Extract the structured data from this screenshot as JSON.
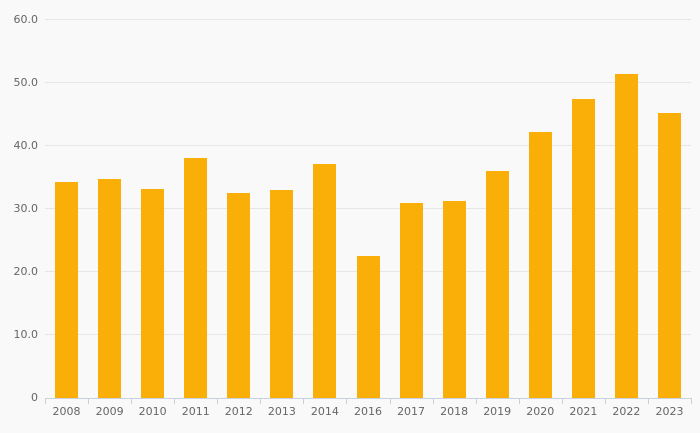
{
  "chart_data": {
    "type": "bar",
    "title": "",
    "xlabel": "",
    "ylabel": "",
    "categories": [
      "2008",
      "2009",
      "2010",
      "2011",
      "2012",
      "2013",
      "2014",
      "2016",
      "2017",
      "2018",
      "2019",
      "2020",
      "2021",
      "2022",
      "2023"
    ],
    "values": [
      34.3,
      34.8,
      33.2,
      38.1,
      32.6,
      33.0,
      37.1,
      22.5,
      31.0,
      31.3,
      36.1,
      42.3,
      47.5,
      51.5,
      45.3
    ],
    "ylim": [
      0,
      60
    ],
    "yticks": [
      0,
      10,
      20,
      30,
      40,
      50,
      60
    ],
    "ytick_labels": [
      "0",
      "10.0",
      "20.0",
      "30.0",
      "40.0",
      "50.0",
      "60.0"
    ],
    "grid": true,
    "legend": false,
    "legend_position": "none",
    "colors": {
      "bar": "#F9AE08",
      "background": "#f9f9f9",
      "gridline": "#e6e6e6",
      "axis": "#c8d0e0",
      "label": "#666666"
    }
  }
}
